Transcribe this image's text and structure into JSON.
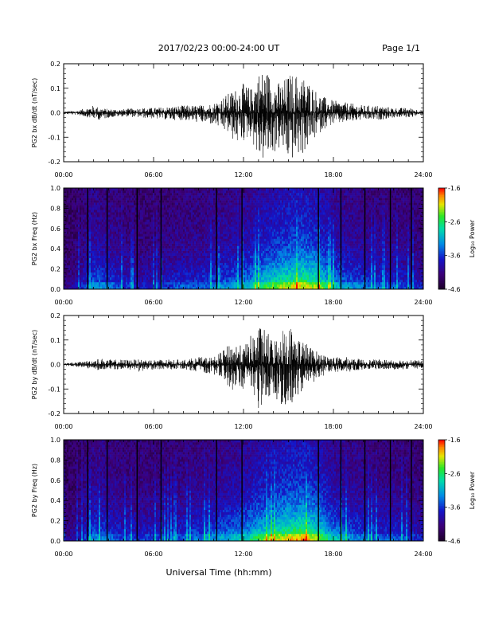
{
  "header": {
    "date_range": "2017/02/23  00:00-24:00 UT",
    "page": "Page 1/1"
  },
  "chart_data": [
    {
      "type": "line",
      "ylabel": "PG2 bx dB/dt (nT/sec)",
      "ylim": [
        -0.2,
        0.2
      ],
      "yticks": [
        "-0.2",
        "-0.1",
        "0.0",
        "0.1",
        "0.2"
      ],
      "xlim": [
        "00:00",
        "24:00"
      ],
      "xticks": [
        "00:00",
        "06:00",
        "12:00",
        "18:00",
        "24:00"
      ],
      "series": [
        {
          "envelope_hours": [
            0,
            1,
            2,
            2.5,
            3,
            4,
            5,
            6,
            7,
            8,
            9,
            10,
            10.5,
            11,
            11.5,
            12,
            12.5,
            13,
            13.5,
            14,
            14.5,
            15,
            15.5,
            16,
            16.5,
            17,
            17.5,
            18,
            19,
            20,
            21,
            22,
            23,
            24
          ],
          "max": [
            0.005,
            0.01,
            0.03,
            0.02,
            0.015,
            0.015,
            0.02,
            0.02,
            0.025,
            0.03,
            0.03,
            0.04,
            0.06,
            0.08,
            0.1,
            0.12,
            0.1,
            0.17,
            0.18,
            0.14,
            0.12,
            0.16,
            0.16,
            0.15,
            0.12,
            0.08,
            0.06,
            0.05,
            0.04,
            0.03,
            0.03,
            0.02,
            0.02,
            0.01
          ],
          "min": [
            -0.005,
            -0.01,
            -0.025,
            -0.03,
            -0.02,
            -0.015,
            -0.02,
            -0.025,
            -0.03,
            -0.03,
            -0.04,
            -0.05,
            -0.07,
            -0.09,
            -0.13,
            -0.12,
            -0.1,
            -0.2,
            -0.2,
            -0.17,
            -0.15,
            -0.2,
            -0.19,
            -0.17,
            -0.13,
            -0.09,
            -0.06,
            -0.05,
            -0.04,
            -0.03,
            -0.03,
            -0.02,
            -0.02,
            -0.01
          ]
        }
      ]
    },
    {
      "type": "heatmap",
      "ylabel": "PG2 bx Freq (Hz)",
      "ylim": [
        0.0,
        1.0
      ],
      "yticks": [
        "0.0",
        "0.2",
        "0.4",
        "0.6",
        "0.8",
        "1.0"
      ],
      "xlim": [
        "00:00",
        "24:00"
      ],
      "xticks": [
        "00:00",
        "06:00",
        "12:00",
        "18:00",
        "24:00"
      ],
      "colorbar": {
        "label": "Log₁₀ Power",
        "range": [
          -4.6,
          -1.6
        ],
        "ticks": [
          "-1.6",
          "-2.6",
          "-3.6",
          "-4.6"
        ]
      },
      "activity_hours": [
        0,
        1,
        2,
        3,
        4,
        5,
        6,
        7,
        8,
        9,
        10,
        11,
        12,
        13,
        14,
        15,
        16,
        17,
        18,
        19,
        20,
        21,
        22,
        23,
        24
      ],
      "activity_level": [
        0.1,
        0.2,
        0.45,
        0.4,
        0.3,
        0.25,
        0.25,
        0.3,
        0.35,
        0.35,
        0.4,
        0.45,
        0.5,
        0.65,
        0.75,
        0.85,
        0.9,
        0.8,
        0.55,
        0.45,
        0.4,
        0.35,
        0.35,
        0.3,
        0.25
      ],
      "data_gaps_hours": [
        1.6,
        2.9,
        4.9,
        6.5,
        10.2,
        11.9,
        17.0,
        18.5,
        20.1,
        21.8,
        23.2
      ]
    },
    {
      "type": "line",
      "ylabel": "PG2 by dB/dt (nT/sec)",
      "ylim": [
        -0.2,
        0.2
      ],
      "yticks": [
        "-0.2",
        "-0.1",
        "0.0",
        "0.1",
        "0.2"
      ],
      "xlim": [
        "00:00",
        "24:00"
      ],
      "xticks": [
        "00:00",
        "06:00",
        "12:00",
        "18:00",
        "24:00"
      ],
      "series": [
        {
          "envelope_hours": [
            0,
            1,
            2,
            2.5,
            3,
            4,
            5,
            6,
            7,
            8,
            9,
            10,
            10.5,
            11,
            11.5,
            12,
            12.5,
            13,
            13.5,
            14,
            14.5,
            15,
            15.5,
            16,
            16.5,
            17,
            17.5,
            18,
            19,
            20,
            21,
            22,
            23,
            24
          ],
          "max": [
            0.005,
            0.01,
            0.02,
            0.025,
            0.02,
            0.02,
            0.02,
            0.02,
            0.02,
            0.02,
            0.03,
            0.03,
            0.05,
            0.08,
            0.09,
            0.07,
            0.12,
            0.16,
            0.14,
            0.1,
            0.15,
            0.17,
            0.13,
            0.1,
            0.07,
            0.05,
            0.04,
            0.03,
            0.03,
            0.02,
            0.02,
            0.02,
            0.02,
            0.015
          ],
          "min": [
            -0.005,
            -0.01,
            -0.02,
            -0.03,
            -0.02,
            -0.02,
            -0.03,
            -0.02,
            -0.02,
            -0.02,
            -0.03,
            -0.04,
            -0.05,
            -0.09,
            -0.12,
            -0.1,
            -0.16,
            -0.18,
            -0.15,
            -0.12,
            -0.17,
            -0.2,
            -0.15,
            -0.1,
            -0.08,
            -0.06,
            -0.04,
            -0.03,
            -0.03,
            -0.02,
            -0.02,
            -0.02,
            -0.02,
            -0.015
          ]
        }
      ]
    },
    {
      "type": "heatmap",
      "ylabel": "PG2 by Freq (Hz)",
      "ylim": [
        0.0,
        1.0
      ],
      "yticks": [
        "0.0",
        "0.2",
        "0.4",
        "0.6",
        "0.8",
        "1.0"
      ],
      "xlim": [
        "00:00",
        "24:00"
      ],
      "xticks": [
        "00:00",
        "06:00",
        "12:00",
        "18:00",
        "24:00"
      ],
      "colorbar": {
        "label": "Log₁₀ Power",
        "range": [
          -4.6,
          -1.6
        ],
        "ticks": [
          "-1.6",
          "-2.6",
          "-3.6",
          "-4.6"
        ]
      },
      "activity_hours": [
        0,
        1,
        2,
        3,
        4,
        5,
        6,
        7,
        8,
        9,
        10,
        11,
        12,
        13,
        14,
        15,
        16,
        17,
        18,
        19,
        20,
        21,
        22,
        23,
        24
      ],
      "activity_level": [
        0.1,
        0.2,
        0.45,
        0.4,
        0.3,
        0.3,
        0.3,
        0.3,
        0.35,
        0.4,
        0.45,
        0.5,
        0.55,
        0.7,
        0.8,
        0.9,
        0.95,
        0.8,
        0.55,
        0.45,
        0.4,
        0.35,
        0.35,
        0.3,
        0.25
      ],
      "data_gaps_hours": [
        1.6,
        2.9,
        4.9,
        6.5,
        10.2,
        11.9,
        17.0,
        18.5,
        20.1,
        21.8,
        23.2
      ]
    }
  ],
  "footer": {
    "xlabel": "Universal Time (hh:mm)"
  }
}
